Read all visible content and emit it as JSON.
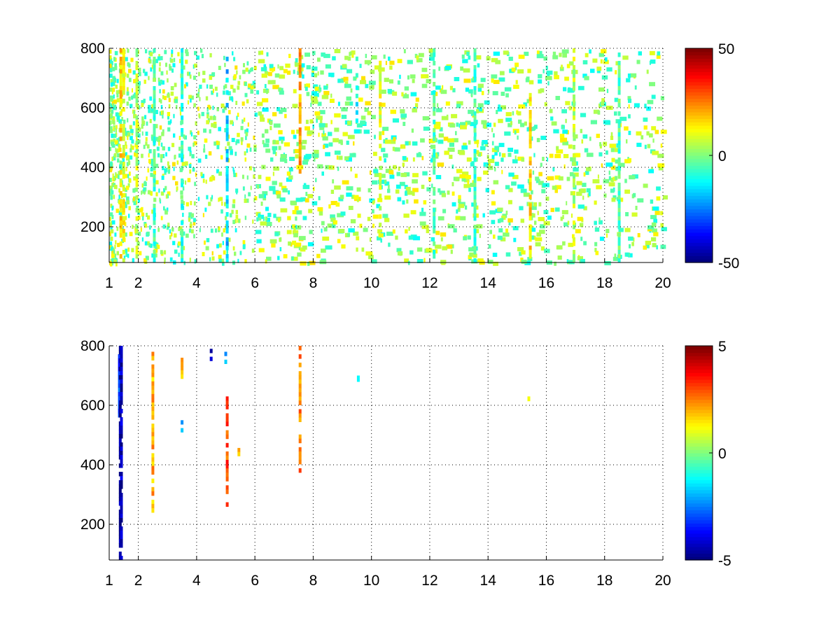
{
  "chart_data": [
    {
      "type": "heatmap",
      "title": "",
      "xlabel": "",
      "ylabel": "",
      "xlim": [
        1,
        20
      ],
      "ylim": [
        80,
        800
      ],
      "xticks": [
        1,
        2,
        4,
        6,
        8,
        10,
        12,
        14,
        16,
        18,
        20
      ],
      "xtick_labels": [
        "1",
        "2",
        "4",
        "6",
        "8",
        "10",
        "12",
        "14",
        "16",
        "18",
        "20"
      ],
      "yticks": [
        200,
        400,
        600,
        800
      ],
      "ytick_labels": [
        "200",
        "400",
        "600",
        "800"
      ],
      "grid": true,
      "grid_style": "dotted",
      "colormap": "jet",
      "clim": [
        -50,
        50
      ],
      "colorbar_ticks": [
        -50,
        0,
        50
      ],
      "colorbar_tick_labels": [
        "-50",
        "0",
        "50"
      ],
      "background": "#ffffff",
      "description": "sparse speckle field, dense at low x and thinning toward high x; values mostly near zero (green-cyan) with stronger positive streaks",
      "streaks": [
        {
          "x": 1.4,
          "y": [
            80,
            800
          ],
          "value": 15
        },
        {
          "x": 1.5,
          "y": [
            80,
            800
          ],
          "value": 12
        },
        {
          "x": 1.95,
          "y": [
            80,
            800
          ],
          "value": 6
        },
        {
          "x": 2.55,
          "y": [
            80,
            800
          ],
          "value": -6
        },
        {
          "x": 3.5,
          "y": [
            80,
            800
          ],
          "value": -8
        },
        {
          "x": 5.05,
          "y": [
            80,
            800
          ],
          "value": -18
        },
        {
          "x": 7.55,
          "y": [
            380,
            800
          ],
          "value": 22
        },
        {
          "x": 9.5,
          "y": [
            550,
            800
          ],
          "value": -10
        },
        {
          "x": 10.3,
          "y": [
            200,
            800
          ],
          "value": 10
        },
        {
          "x": 12.15,
          "y": [
            80,
            800
          ],
          "value": -5
        },
        {
          "x": 13.55,
          "y": [
            80,
            800
          ],
          "value": -6
        },
        {
          "x": 15.45,
          "y": [
            80,
            650
          ],
          "value": 16
        },
        {
          "x": 16.95,
          "y": [
            80,
            800
          ],
          "value": 6
        },
        {
          "x": 18.5,
          "y": [
            80,
            800
          ],
          "value": -4
        }
      ]
    },
    {
      "type": "heatmap",
      "title": "",
      "xlabel": "",
      "ylabel": "",
      "xlim": [
        1,
        20
      ],
      "ylim": [
        80,
        800
      ],
      "xticks": [
        1,
        2,
        4,
        6,
        8,
        10,
        12,
        14,
        16,
        18,
        20
      ],
      "xtick_labels": [
        "1",
        "2",
        "4",
        "6",
        "8",
        "10",
        "12",
        "14",
        "16",
        "18",
        "20"
      ],
      "yticks": [
        200,
        400,
        600,
        800
      ],
      "ytick_labels": [
        "200",
        "400",
        "600",
        "800"
      ],
      "grid": true,
      "grid_style": "dotted",
      "colormap": "jet",
      "clim": [
        -5,
        5
      ],
      "colorbar_ticks": [
        -5,
        0,
        5
      ],
      "colorbar_tick_labels": [
        "-5",
        "0",
        "5"
      ],
      "background": "#ffffff",
      "description": "very sparse; only a few vertical streaks carry nonzero values",
      "streaks": [
        {
          "x": 1.35,
          "y": [
            560,
            800
          ],
          "value": -3
        },
        {
          "x": 1.38,
          "y": [
            80,
            800
          ],
          "value": -5
        },
        {
          "x": 1.42,
          "y": [
            80,
            800
          ],
          "value": -4.5
        },
        {
          "x": 2.5,
          "y": [
            240,
            780
          ],
          "value": 2
        },
        {
          "x": 3.5,
          "y": [
            690,
            760
          ],
          "value": 2
        },
        {
          "x": 3.5,
          "y": [
            510,
            550
          ],
          "value": -2
        },
        {
          "x": 4.5,
          "y": [
            750,
            790
          ],
          "value": -4
        },
        {
          "x": 5.0,
          "y": [
            740,
            780
          ],
          "value": -2
        },
        {
          "x": 5.05,
          "y": [
            260,
            630
          ],
          "value": 3
        },
        {
          "x": 5.45,
          "y": [
            430,
            470
          ],
          "value": 2
        },
        {
          "x": 7.55,
          "y": [
            360,
            800
          ],
          "value": 2.5
        },
        {
          "x": 9.55,
          "y": [
            680,
            700
          ],
          "value": -1.5
        },
        {
          "x": 15.4,
          "y": [
            615,
            630
          ],
          "value": 0.5
        }
      ]
    }
  ]
}
